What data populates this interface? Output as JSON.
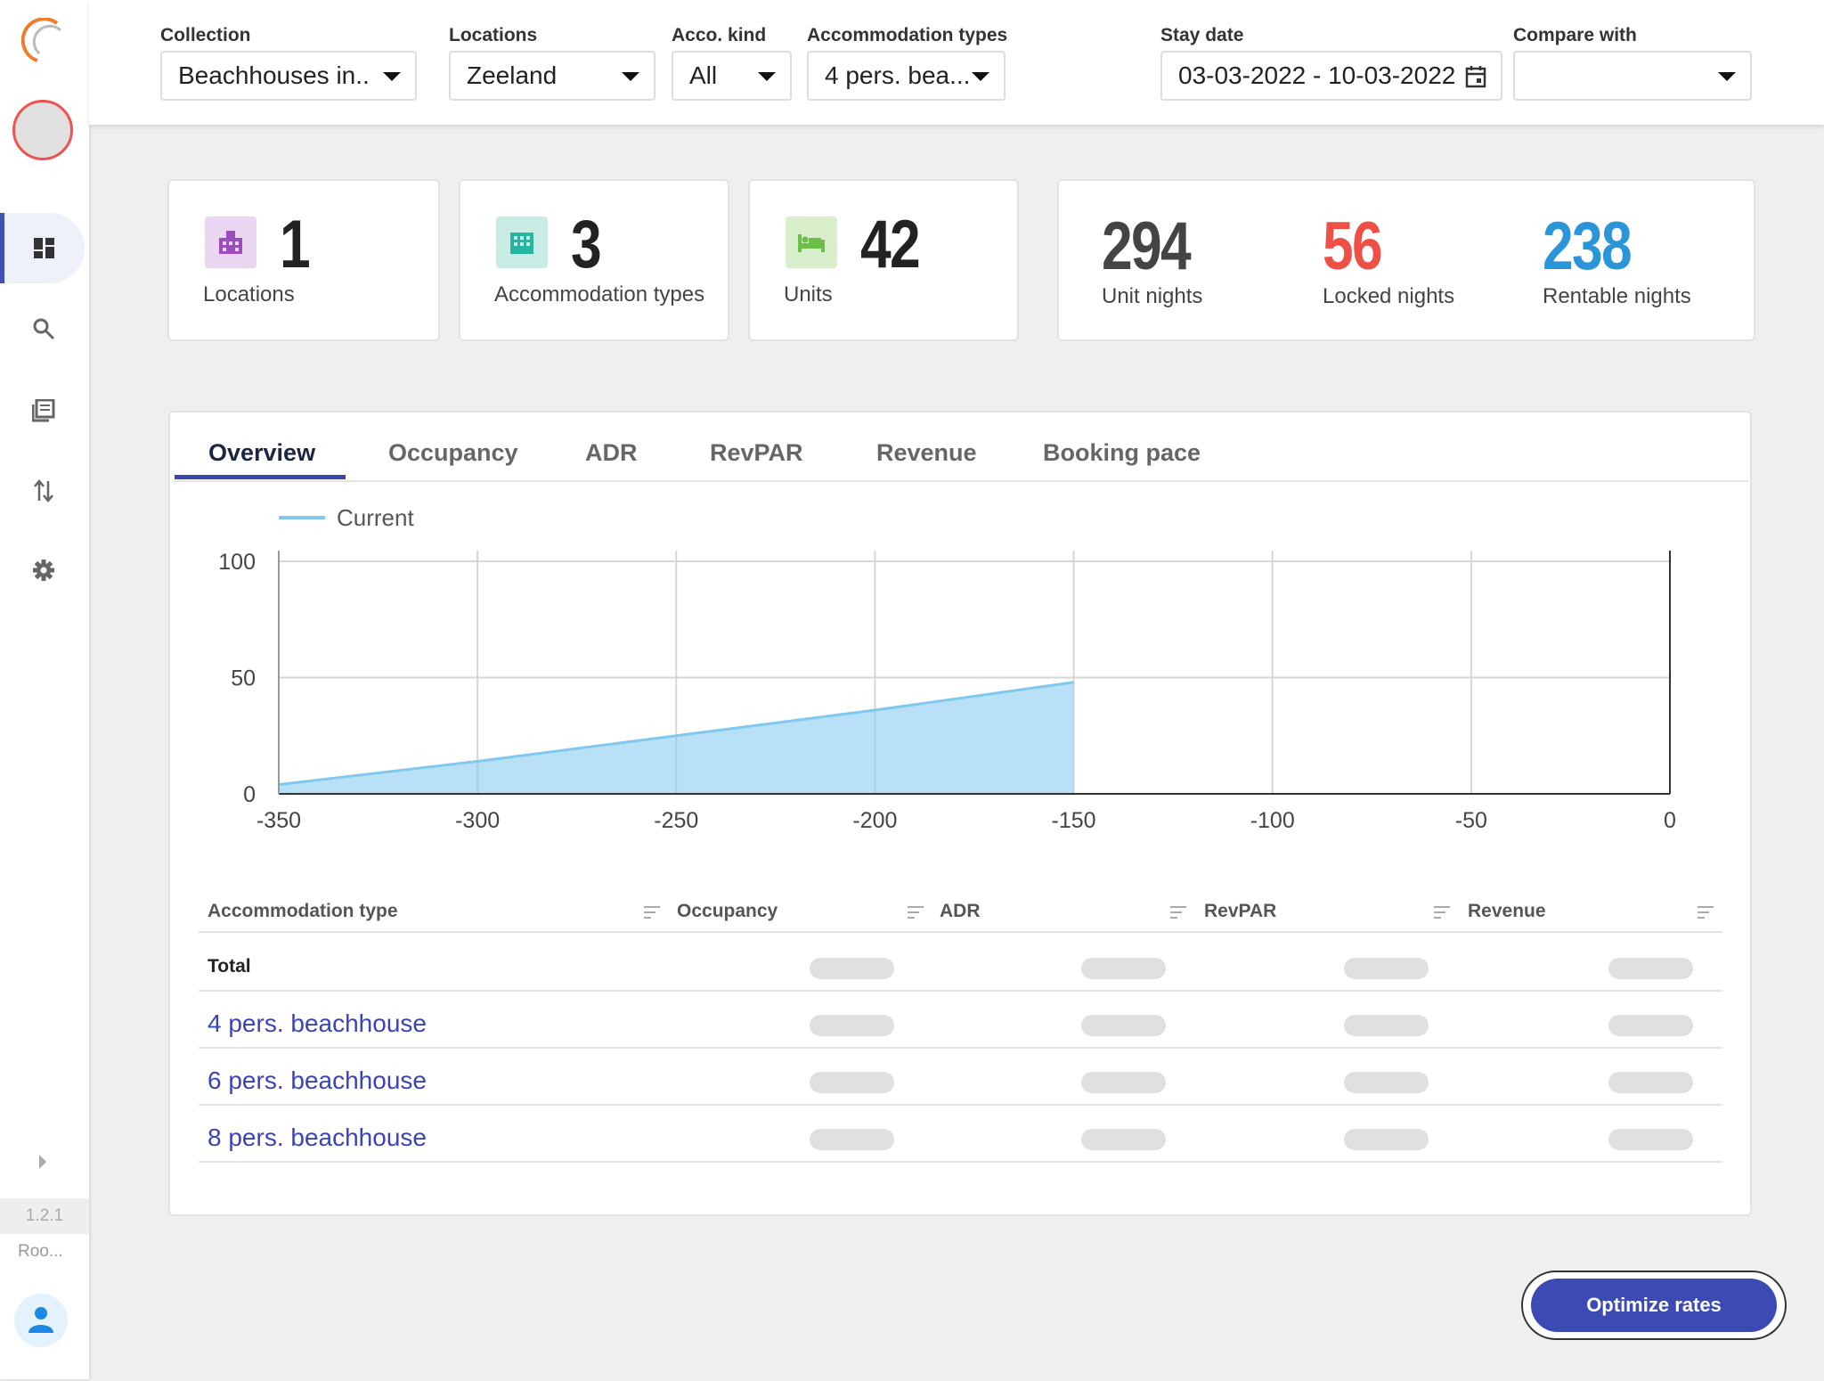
{
  "sidebar": {
    "version": "1.2.1",
    "user": "Roo..."
  },
  "filters": [
    {
      "label": "Collection",
      "value": "Beachhouses in.."
    },
    {
      "label": "Locations",
      "value": "Zeeland"
    },
    {
      "label": "Acco. kind",
      "value": "All"
    },
    {
      "label": "Accommodation types",
      "value": "4 pers. bea..."
    },
    {
      "label": "Stay date",
      "value": "03-03-2022 - 10-03-2022"
    },
    {
      "label": "Compare with"
    }
  ],
  "stats": [
    {
      "value": 1,
      "label": "Locations"
    },
    {
      "value": 3,
      "label": "Accommodation types"
    },
    {
      "value": 42,
      "label": "Units"
    }
  ],
  "nights": [
    {
      "value": 294,
      "label": "Unit nights"
    },
    {
      "value": 56,
      "label": "Locked nights"
    },
    {
      "value": 238,
      "label": "Rentable nights"
    }
  ],
  "tabs": [
    "Overview",
    "Occupancy",
    "ADR",
    "RevPAR",
    "Revenue",
    "Booking pace"
  ],
  "chart_data": {
    "type": "area",
    "x": [
      -350,
      -300,
      -250,
      -200,
      -150
    ],
    "series": [
      {
        "name": "Current",
        "color": "#7ec8f2",
        "values": [
          4,
          14,
          25,
          36,
          48
        ]
      }
    ],
    "xlim": [
      -350,
      0
    ],
    "xticks": [
      -350,
      -300,
      -250,
      -200,
      -150,
      -100,
      -50,
      0
    ],
    "ylim": [
      0,
      100
    ],
    "yticks": [
      0,
      50,
      100
    ],
    "grid": true,
    "legend": "top-left"
  },
  "table": {
    "columns": [
      "Accommodation type",
      "Occupancy",
      "ADR",
      "RevPAR",
      "Revenue"
    ],
    "total": "Total",
    "rows": [
      "4 pers. beachhouse",
      "6 pers. beachhouse",
      "8 pers. beachhouse"
    ]
  },
  "button": "Optimize rates"
}
